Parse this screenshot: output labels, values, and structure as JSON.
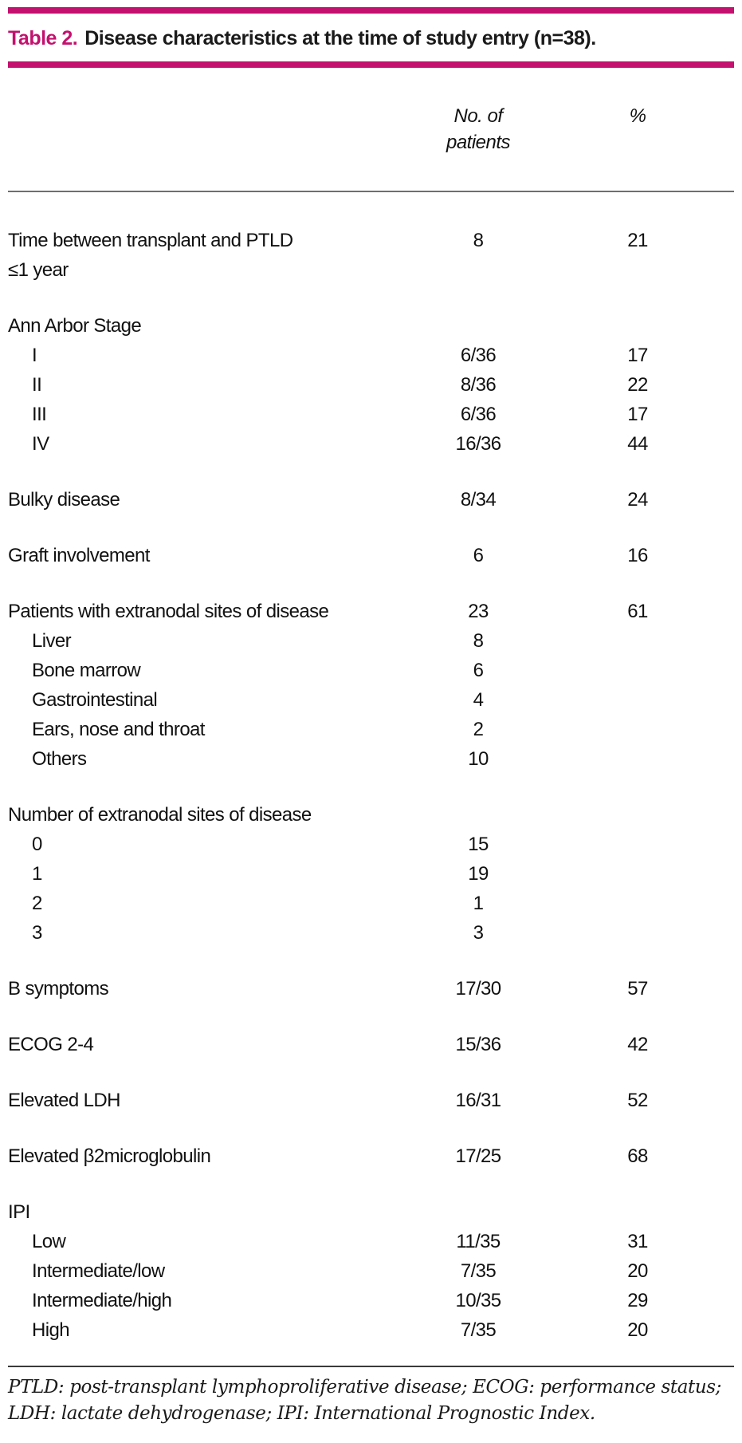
{
  "title": {
    "label": "Table 2.",
    "text": "Disease characteristics at the time of study entry (n=38)."
  },
  "colors": {
    "accent": "#C4106E",
    "header_rule": "#6f6f6f",
    "footer_rule": "#3a3a3a"
  },
  "header": {
    "col_patients": "No. of\npatients",
    "col_percent": "%"
  },
  "table": {
    "rows": [
      {
        "label": "Time between transplant and PTLD\n≤1 year",
        "patients": "8",
        "pct": "21",
        "indent": false,
        "gap": false
      },
      {
        "label": "Ann Arbor Stage",
        "patients": "",
        "pct": "",
        "indent": false,
        "gap": true
      },
      {
        "label": "I",
        "patients": "6/36",
        "pct": "17",
        "indent": true,
        "gap": false
      },
      {
        "label": "II",
        "patients": "8/36",
        "pct": "22",
        "indent": true,
        "gap": false
      },
      {
        "label": "III",
        "patients": "6/36",
        "pct": "17",
        "indent": true,
        "gap": false
      },
      {
        "label": "IV",
        "patients": "16/36",
        "pct": "44",
        "indent": true,
        "gap": false
      },
      {
        "label": "Bulky disease",
        "patients": "8/34",
        "pct": "24",
        "indent": false,
        "gap": true
      },
      {
        "label": "Graft involvement",
        "patients": "6",
        "pct": "16",
        "indent": false,
        "gap": true
      },
      {
        "label": "Patients with extranodal sites of disease",
        "patients": "23",
        "pct": "61",
        "indent": false,
        "gap": true
      },
      {
        "label": "Liver",
        "patients": "8",
        "pct": "",
        "indent": true,
        "gap": false
      },
      {
        "label": "Bone marrow",
        "patients": "6",
        "pct": "",
        "indent": true,
        "gap": false
      },
      {
        "label": "Gastrointestinal",
        "patients": "4",
        "pct": "",
        "indent": true,
        "gap": false
      },
      {
        "label": "Ears, nose and throat",
        "patients": "2",
        "pct": "",
        "indent": true,
        "gap": false
      },
      {
        "label": "Others",
        "patients": "10",
        "pct": "",
        "indent": true,
        "gap": false
      },
      {
        "label": "Number of extranodal sites of disease",
        "patients": "",
        "pct": "",
        "indent": false,
        "gap": true
      },
      {
        "label": "0",
        "patients": "15",
        "pct": "",
        "indent": true,
        "gap": false
      },
      {
        "label": "1",
        "patients": "19",
        "pct": "",
        "indent": true,
        "gap": false
      },
      {
        "label": "2",
        "patients": "1",
        "pct": "",
        "indent": true,
        "gap": false
      },
      {
        "label": "3",
        "patients": "3",
        "pct": "",
        "indent": true,
        "gap": false
      },
      {
        "label": "B symptoms",
        "patients": "17/30",
        "pct": "57",
        "indent": false,
        "gap": true
      },
      {
        "label": "ECOG 2-4",
        "patients": "15/36",
        "pct": "42",
        "indent": false,
        "gap": true
      },
      {
        "label": "Elevated LDH",
        "patients": "16/31",
        "pct": "52",
        "indent": false,
        "gap": true
      },
      {
        "label": "Elevated β2microglobulin",
        "patients": "17/25",
        "pct": "68",
        "indent": false,
        "gap": true
      },
      {
        "label": "IPI",
        "patients": "",
        "pct": "",
        "indent": false,
        "gap": true
      },
      {
        "label": "Low",
        "patients": "11/35",
        "pct": "31",
        "indent": true,
        "gap": false
      },
      {
        "label": "Intermediate/low",
        "patients": "7/35",
        "pct": "20",
        "indent": true,
        "gap": false
      },
      {
        "label": "Intermediate/high",
        "patients": "10/35",
        "pct": "29",
        "indent": true,
        "gap": false
      },
      {
        "label": "High",
        "patients": "7/35",
        "pct": "20",
        "indent": true,
        "gap": false
      }
    ]
  },
  "footnote": "PTLD: post-transplant lymphoproliferative disease; ECOG: performance status;\nLDH: lactate dehydrogenase; IPI: International Prognostic Index."
}
